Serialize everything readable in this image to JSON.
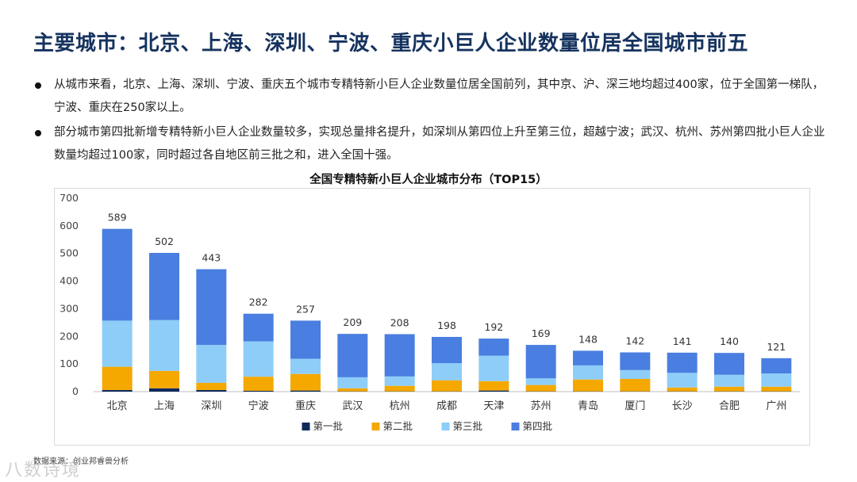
{
  "title": "主要城市：北京、上海、深圳、宁波、重庆小巨人企业数量位居全国城市前五",
  "bullets": [
    "从城市来看，北京、上海、深圳、宁波、重庆五个城市专精特新小巨人企业数量位居全国前列，其中京、沪、深三地均超过400家，位于全国第一梯队，宁波、重庆在250家以上。",
    "部分城市第四批新增专精特新小巨人企业数量较多，实现总量排名提升，如深圳从第四位上升至第三位，超越宁波；武汉、杭州、苏州第四批小巨人企业数量均超过100家，同时超过各自地区前三批之和，进入全国十强。"
  ],
  "source": "数据来源：创业邦睿兽分析",
  "watermark": "八数诗境",
  "chart_data": {
    "type": "bar",
    "stacked": true,
    "title": "全国专精特新小巨人企业城市分布（TOP15）",
    "xlabel": "",
    "ylabel": "",
    "ylim": [
      0,
      700
    ],
    "yticks": [
      0,
      100,
      200,
      300,
      400,
      500,
      600,
      700
    ],
    "grid": false,
    "legend_position": "bottom",
    "categories": [
      "北京",
      "上海",
      "深圳",
      "宁波",
      "重庆",
      "武汉",
      "杭州",
      "成都",
      "天津",
      "苏州",
      "青岛",
      "厦门",
      "长沙",
      "合肥",
      "广州"
    ],
    "totals": [
      589,
      502,
      443,
      282,
      257,
      209,
      208,
      198,
      192,
      169,
      148,
      142,
      141,
      140,
      121
    ],
    "series": [
      {
        "name": "第一批",
        "color": "#0d2a5c",
        "values": [
          6,
          12,
          6,
          3,
          4,
          1,
          1,
          1,
          4,
          1,
          1,
          1,
          1,
          1,
          1
        ]
      },
      {
        "name": "第二批",
        "color": "#f5a800",
        "values": [
          84,
          63,
          26,
          51,
          60,
          11,
          20,
          40,
          34,
          23,
          43,
          45,
          14,
          17,
          17
        ]
      },
      {
        "name": "第三批",
        "color": "#8ecdf8",
        "values": [
          167,
          184,
          137,
          128,
          55,
          40,
          34,
          62,
          92,
          24,
          51,
          32,
          53,
          43,
          48
        ]
      },
      {
        "name": "第四批",
        "color": "#4a7ee0",
        "values": [
          332,
          243,
          274,
          100,
          138,
          157,
          153,
          95,
          62,
          121,
          53,
          64,
          73,
          79,
          55
        ]
      }
    ]
  }
}
